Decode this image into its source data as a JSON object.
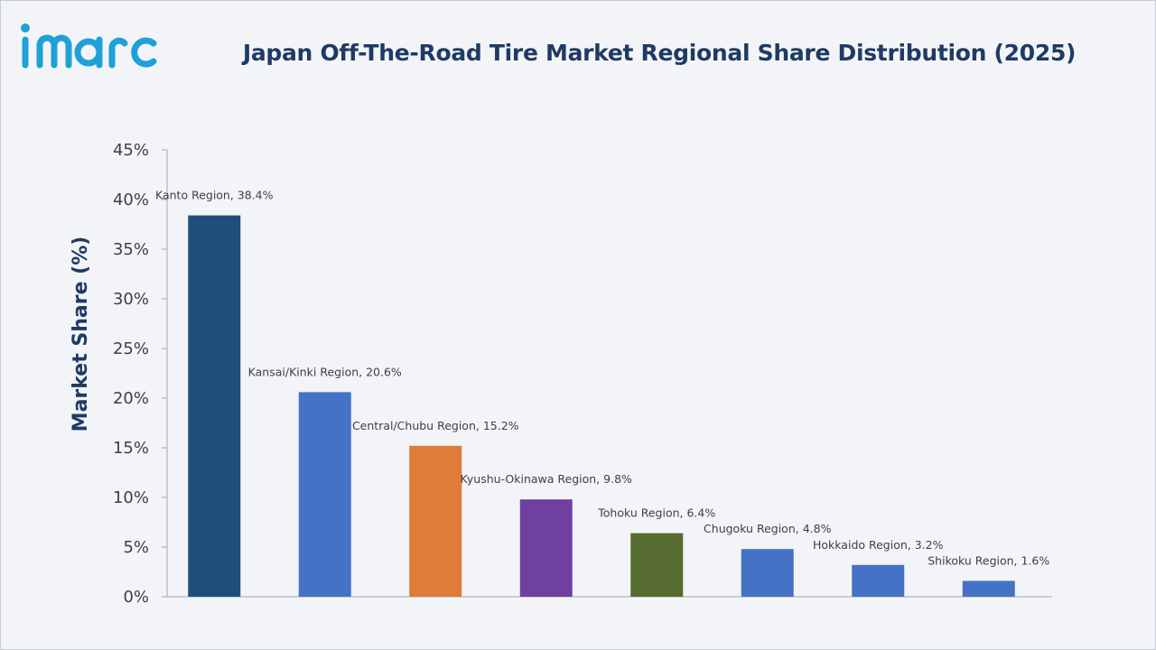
{
  "brand": {
    "name": "imarc",
    "color": "#1fa0d8"
  },
  "chart_data": {
    "type": "bar",
    "title": "Japan Off-The-Road Tire Market Regional Share Distribution (2025)",
    "xlabel": "",
    "ylabel": "Market Share (%)",
    "ylim": [
      0,
      45
    ],
    "yticks": [
      0,
      5,
      10,
      15,
      20,
      25,
      30,
      35,
      40,
      45
    ],
    "ytick_labels": [
      "0%",
      "5%",
      "10%",
      "15%",
      "20%",
      "25%",
      "30%",
      "35%",
      "40%",
      "45%"
    ],
    "grid": false,
    "legend": "none",
    "categories": [
      "Kanto Region",
      "Kansai/Kinki Region",
      "Central/Chubu Region",
      "Kyushu-Okinawa Region",
      "Tohoku Region",
      "Chugoku Region",
      "Hokkaido Region",
      "Shikoku Region"
    ],
    "values": [
      38.4,
      20.6,
      15.2,
      9.8,
      6.4,
      4.8,
      3.2,
      1.6
    ],
    "data_labels": [
      "Kanto Region, 38.4%",
      "Kansai/Kinki Region, 20.6%",
      "Central/Chubu Region, 15.2%",
      "Kyushu-Okinawa Region, 9.8%",
      "Tohoku Region, 6.4%",
      "Chugoku Region, 4.8%",
      "Hokkaido Region, 3.2%",
      "Shikoku Region, 1.6%"
    ],
    "colors": [
      "#1f4e79",
      "#4472c4",
      "#e07b39",
      "#7040a0",
      "#556b2f",
      "#4472c4",
      "#4472c4",
      "#4472c4"
    ]
  }
}
